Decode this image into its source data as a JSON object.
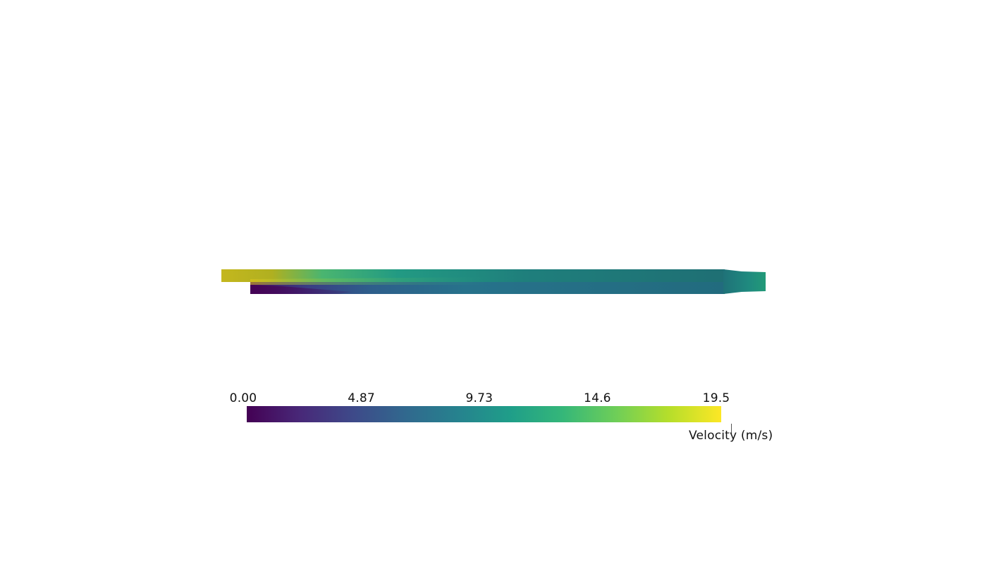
{
  "scene": {
    "background": "#ffffff",
    "field": "Velocity (m/s)",
    "colormap": "viridis",
    "colormap_stops": [
      "#440154",
      "#482878",
      "#3e4989",
      "#31688e",
      "#26828e",
      "#1f9e89",
      "#35b779",
      "#6ece58",
      "#b5de2b",
      "#fde725"
    ]
  },
  "colorbar": {
    "title": "Velocity (m/s)",
    "range": [
      0.0,
      19.5
    ],
    "ticks": [
      {
        "label": "0.00",
        "value": 0.0
      },
      {
        "label": "4.87",
        "value": 4.87
      },
      {
        "label": "9.73",
        "value": 9.73
      },
      {
        "label": "14.6",
        "value": 14.6
      },
      {
        "label": "19.5",
        "value": 19.5
      }
    ],
    "orientation": "horizontal"
  },
  "geometry_fields": {
    "upper_inlet_velocity": 16.5,
    "lower_inlet_velocity": 0.3,
    "channel_core_velocity": 8.5,
    "outlet_velocity": 10.5
  }
}
